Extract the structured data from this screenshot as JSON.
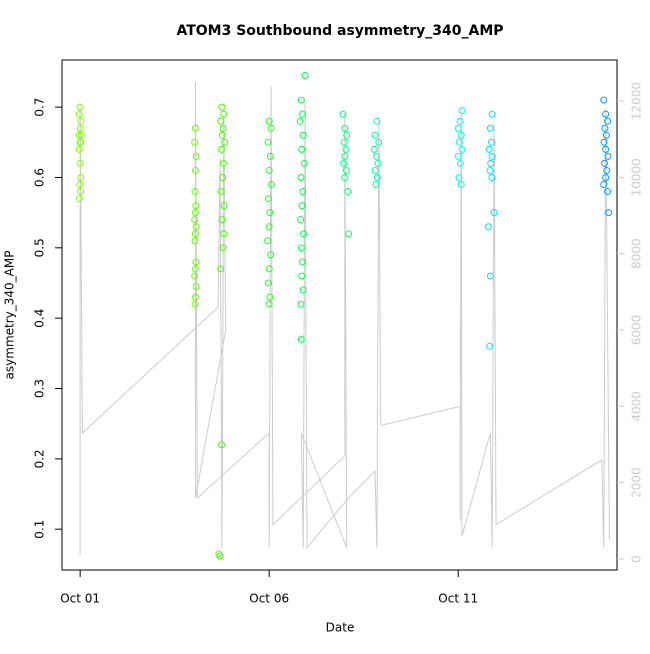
{
  "chart_data": {
    "type": "scatter",
    "title": "ATOM3 Southbound asymmetry_340_AMP",
    "x_label": "Date",
    "y_label": "asymmetry_340_AMP",
    "xlim": [
      0.52,
      15.2
    ],
    "xticks": [
      {
        "value": 1,
        "label": "Oct 01"
      },
      {
        "value": 6,
        "label": "Oct 06"
      },
      {
        "value": 11,
        "label": "Oct 11"
      }
    ],
    "ylim": [
      0.042,
      0.767
    ],
    "yticks": [
      0.1,
      0.2,
      0.3,
      0.4,
      0.5,
      0.6,
      0.7
    ],
    "y2lim": [
      -288,
      13074
    ],
    "y2ticks": [
      0,
      2000,
      4000,
      6000,
      8000,
      10000,
      12000
    ],
    "series": [
      {
        "color": "#80ff00",
        "x": [
          1.0,
          0.98,
          1.02,
          1.0,
          0.97,
          1.03,
          1.0,
          1.02,
          0.98,
          1.0,
          1.02,
          0.99,
          1.01,
          0.98
        ],
        "values": [
          0.7,
          0.69,
          0.68,
          0.67,
          0.66,
          0.66,
          0.65,
          0.65,
          0.64,
          0.62,
          0.6,
          0.59,
          0.58,
          0.57
        ]
      },
      {
        "color": "#60ff00",
        "x": [
          4.05,
          4.03,
          4.07,
          4.05,
          4.04,
          4.06,
          4.05,
          4.03,
          4.07,
          4.05,
          4.04,
          4.06,
          4.05,
          4.03,
          4.07,
          4.05,
          4.04
        ],
        "values": [
          0.67,
          0.65,
          0.63,
          0.61,
          0.58,
          0.56,
          0.55,
          0.54,
          0.53,
          0.52,
          0.51,
          0.48,
          0.47,
          0.46,
          0.445,
          0.43,
          0.42
        ]
      },
      {
        "color": "#40ff00",
        "x": [
          4.75,
          4.8,
          4.72,
          4.78,
          4.76,
          4.82,
          4.74,
          4.79,
          4.77,
          4.73,
          4.81,
          4.75,
          4.8,
          4.78,
          4.72,
          4.74,
          4.67,
          4.7
        ],
        "values": [
          0.7,
          0.69,
          0.68,
          0.67,
          0.66,
          0.65,
          0.64,
          0.62,
          0.6,
          0.58,
          0.56,
          0.54,
          0.52,
          0.5,
          0.47,
          0.22,
          0.065,
          0.062
        ]
      },
      {
        "color": "#20ff20",
        "x": [
          6.0,
          6.05,
          5.97,
          6.03,
          6.0,
          6.06,
          5.98,
          6.02,
          6.0,
          5.96,
          6.04,
          6.0,
          5.98,
          6.02,
          6.0
        ],
        "values": [
          0.68,
          0.67,
          0.65,
          0.63,
          0.61,
          0.59,
          0.57,
          0.55,
          0.53,
          0.51,
          0.49,
          0.47,
          0.45,
          0.43,
          0.42
        ]
      },
      {
        "color": "#00ff40",
        "x": [
          6.95,
          6.85,
          6.88,
          6.82,
          6.9,
          6.86,
          6.93,
          6.84,
          6.89,
          6.87,
          6.83,
          6.91,
          6.85,
          6.88,
          6.86,
          6.9,
          6.84,
          6.85
        ],
        "values": [
          0.745,
          0.71,
          0.69,
          0.68,
          0.66,
          0.64,
          0.62,
          0.6,
          0.58,
          0.56,
          0.54,
          0.52,
          0.5,
          0.48,
          0.46,
          0.44,
          0.42,
          0.37
        ]
      },
      {
        "color": "#00ff80",
        "x": [
          7.95,
          8.0,
          8.05,
          7.98,
          8.03,
          8.0,
          7.97,
          8.04,
          8.0,
          8.08,
          8.1
        ],
        "values": [
          0.69,
          0.67,
          0.66,
          0.65,
          0.64,
          0.63,
          0.62,
          0.61,
          0.6,
          0.58,
          0.52
        ]
      },
      {
        "color": "#00ffa0",
        "x": [
          8.85,
          8.8,
          8.9,
          8.78,
          8.84,
          8.88,
          8.8,
          8.86,
          8.82
        ],
        "values": [
          0.68,
          0.66,
          0.65,
          0.64,
          0.63,
          0.62,
          0.61,
          0.6,
          0.59
        ]
      },
      {
        "color": "#00ffe0",
        "x": [
          11.1,
          11.05,
          11.0,
          11.08,
          11.03,
          11.1,
          11.0,
          11.06,
          11.02,
          11.08
        ],
        "values": [
          0.695,
          0.68,
          0.67,
          0.66,
          0.65,
          0.64,
          0.63,
          0.62,
          0.6,
          0.59
        ]
      },
      {
        "color": "#00e0ff",
        "x": [
          11.9,
          11.85,
          11.88,
          11.82,
          11.9,
          11.86,
          11.84,
          11.89,
          11.95,
          11.8,
          11.85,
          11.83
        ],
        "values": [
          0.69,
          0.67,
          0.65,
          0.64,
          0.63,
          0.62,
          0.61,
          0.6,
          0.55,
          0.53,
          0.46,
          0.36
        ]
      },
      {
        "color": "#0099ff",
        "x": [
          14.85,
          14.9,
          14.95,
          14.88,
          14.92,
          14.86,
          14.9,
          14.96,
          14.87,
          14.93,
          14.9,
          14.85,
          14.95,
          14.98
        ],
        "values": [
          0.71,
          0.69,
          0.68,
          0.67,
          0.66,
          0.65,
          0.64,
          0.63,
          0.62,
          0.61,
          0.6,
          0.59,
          0.58,
          0.55
        ]
      },
      {
        "color": "#cccccc",
        "axis": "y2",
        "x": [
          1.0,
          1.0,
          1.06,
          4.65,
          4.7,
          4.75,
          4.8,
          4.85,
          4.05,
          4.05,
          4.1,
          6.0,
          6.0,
          6.05,
          6.1,
          8.0,
          8.0,
          8.05,
          6.85,
          6.9,
          6.95,
          7.0,
          8.1,
          8.8,
          8.85,
          8.9,
          8.95,
          11.05,
          11.05,
          11.08,
          11.1,
          11.85,
          11.9,
          11.95,
          12.0,
          14.8,
          14.85,
          14.9,
          15.0
        ],
        "values": [
          100,
          11900,
          3300,
          6600,
          10500,
          300,
          11600,
          6000,
          1600,
          12500,
          1600,
          3300,
          300,
          12400,
          900,
          2700,
          11700,
          300,
          3300,
          300,
          12000,
          300,
          1600,
          2300,
          300,
          11500,
          3500,
          4000,
          1000,
          11800,
          600,
          3300,
          300,
          11400,
          900,
          2600,
          300,
          11800,
          500
        ]
      }
    ]
  }
}
